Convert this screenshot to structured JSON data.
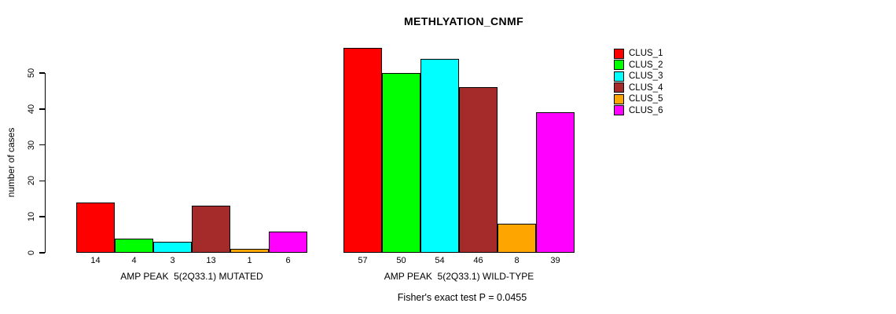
{
  "chart_data": {
    "type": "bar",
    "title": "METHLYATION_CNMF",
    "ylabel": "number of cases",
    "subtitle": "Fisher's exact test P = 0.0455",
    "ylim": [
      0,
      57
    ],
    "yticks": [
      0,
      10,
      20,
      30,
      40,
      50
    ],
    "grid": false,
    "legend_position": "top-right",
    "series": [
      {
        "name": "CLUS_1",
        "color": "#FF0000"
      },
      {
        "name": "CLUS_2",
        "color": "#00FF00"
      },
      {
        "name": "CLUS_3",
        "color": "#00FFFF"
      },
      {
        "name": "CLUS_4",
        "color": "#A52A2A"
      },
      {
        "name": "CLUS_5",
        "color": "#FFA500"
      },
      {
        "name": "CLUS_6",
        "color": "#FF00FF"
      }
    ],
    "groups": [
      {
        "label": "AMP PEAK  5(2Q33.1) MUTATED",
        "values": [
          14,
          4,
          3,
          13,
          1,
          6
        ]
      },
      {
        "label": "AMP PEAK  5(2Q33.1) WILD-TYPE",
        "values": [
          57,
          50,
          54,
          46,
          8,
          39
        ]
      }
    ]
  }
}
